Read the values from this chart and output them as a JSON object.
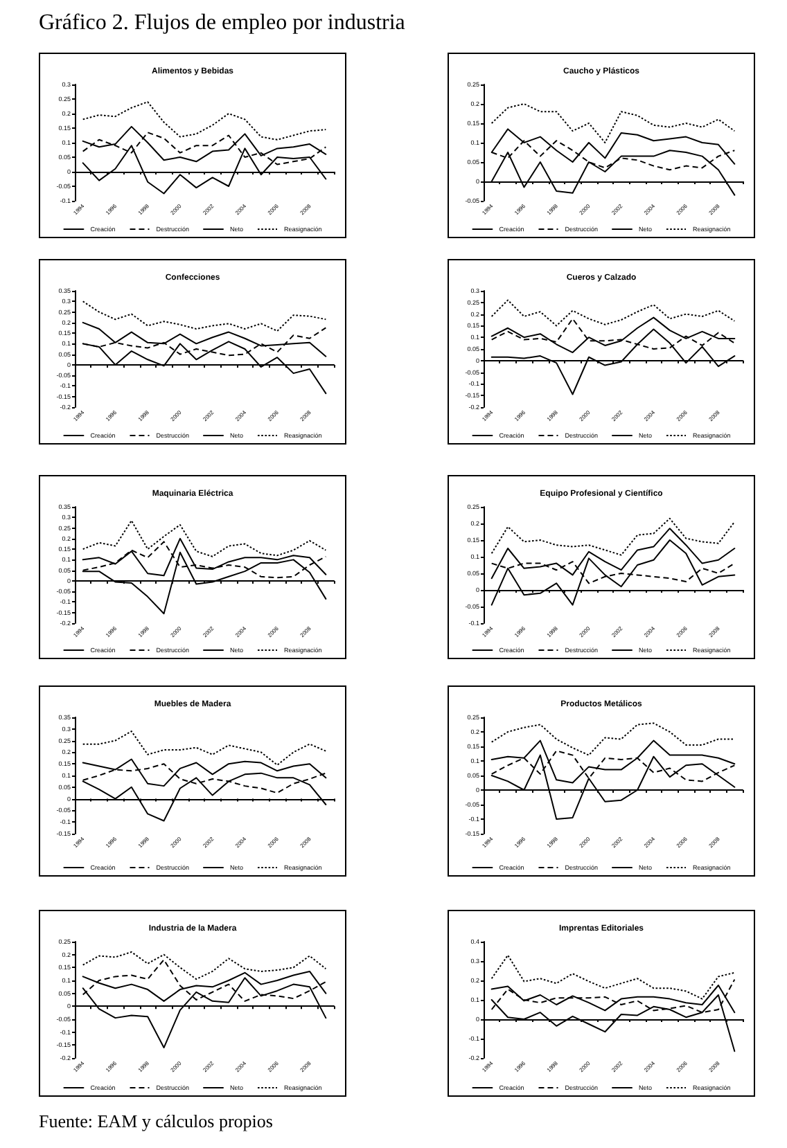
{
  "chart_data": [
    {
      "type": "other",
      "title": "Gráfico 2. Flujos de empleo por industria"
    },
    {
      "type": "line",
      "title": "Alimentos y Bebidas",
      "categories": [
        "1994",
        null,
        "1996",
        null,
        "1998",
        null,
        "2000",
        null,
        "2002",
        null,
        "2004",
        null,
        "2006",
        null,
        "2008",
        null
      ],
      "ylim": [
        -0.1,
        0.3
      ],
      "yticks": [
        -0.1,
        -0.05,
        0,
        0.05,
        0.1,
        0.15,
        0.2,
        0.25,
        0.3
      ],
      "legend": "bottom",
      "marker": "none",
      "series": [
        {
          "name": "Creación",
          "color": "#000000",
          "line_style": "solid",
          "values": [
            0.105,
            0.085,
            0.095,
            0.155,
            0.1,
            0.04,
            0.05,
            0.035,
            0.07,
            0.075,
            0.13,
            0.055,
            0.08,
            0.085,
            0.095,
            0.06
          ]
        },
        {
          "name": "Destrucción",
          "color": "#000000",
          "line_style": "dashed",
          "values": [
            0.07,
            0.11,
            0.09,
            0.065,
            0.135,
            0.115,
            0.065,
            0.09,
            0.09,
            0.125,
            0.05,
            0.065,
            0.025,
            0.035,
            0.045,
            0.085
          ]
        },
        {
          "name": "Neto",
          "color": "#000000",
          "line_style": "solid",
          "values": [
            0.03,
            -0.03,
            0.01,
            0.09,
            -0.035,
            -0.075,
            -0.01,
            -0.055,
            -0.02,
            -0.05,
            0.08,
            -0.01,
            0.05,
            0.045,
            0.05,
            -0.025
          ]
        },
        {
          "name": "Reasignación",
          "color": "#000000",
          "line_style": "dotted",
          "values": [
            0.18,
            0.195,
            0.19,
            0.22,
            0.24,
            0.17,
            0.12,
            0.13,
            0.16,
            0.2,
            0.18,
            0.12,
            0.11,
            0.125,
            0.14,
            0.145
          ]
        }
      ]
    },
    {
      "type": "line",
      "title": "Caucho y Plásticos",
      "categories": [
        "1994",
        null,
        "1996",
        null,
        "1998",
        null,
        "2000",
        null,
        "2002",
        null,
        "2004",
        null,
        "2006",
        null,
        "2008",
        null
      ],
      "ylim": [
        -0.05,
        0.25
      ],
      "yticks": [
        -0.05,
        0,
        0.05,
        0.1,
        0.15,
        0.2,
        0.25
      ],
      "legend": "bottom",
      "marker": "none",
      "series": [
        {
          "name": "Creación",
          "color": "#000000",
          "line_style": "solid",
          "values": [
            0.075,
            0.135,
            0.1,
            0.115,
            0.08,
            0.05,
            0.1,
            0.06,
            0.125,
            0.12,
            0.105,
            0.11,
            0.115,
            0.1,
            0.095,
            0.045
          ]
        },
        {
          "name": "Destrucción",
          "color": "#000000",
          "line_style": "dashed",
          "values": [
            0.075,
            0.06,
            0.105,
            0.065,
            0.105,
            0.08,
            0.05,
            0.035,
            0.06,
            0.055,
            0.04,
            0.03,
            0.04,
            0.035,
            0.065,
            0.08
          ]
        },
        {
          "name": "Neto",
          "color": "#000000",
          "line_style": "solid",
          "values": [
            0,
            0.075,
            -0.015,
            0.05,
            -0.025,
            -0.03,
            0.05,
            0.025,
            0.065,
            0.065,
            0.065,
            0.08,
            0.075,
            0.065,
            0.03,
            -0.035
          ]
        },
        {
          "name": "Reasignación",
          "color": "#000000",
          "line_style": "dotted",
          "values": [
            0.15,
            0.19,
            0.2,
            0.18,
            0.18,
            0.13,
            0.15,
            0.1,
            0.18,
            0.17,
            0.145,
            0.14,
            0.15,
            0.14,
            0.16,
            0.13
          ]
        }
      ]
    },
    {
      "type": "line",
      "title": "Confecciones",
      "categories": [
        "1994",
        null,
        "1996",
        null,
        "1998",
        null,
        "2000",
        null,
        "2002",
        null,
        "2004",
        null,
        "2006",
        null,
        "2008",
        null
      ],
      "ylim": [
        -0.2,
        0.35
      ],
      "yticks": [
        -0.2,
        -0.15,
        -0.1,
        -0.05,
        0,
        0.05,
        0.1,
        0.15,
        0.2,
        0.25,
        0.3,
        0.35
      ],
      "legend": "bottom",
      "marker": "none",
      "series": [
        {
          "name": "Creación",
          "color": "#000000",
          "line_style": "solid",
          "values": [
            0.2,
            0.17,
            0.105,
            0.155,
            0.105,
            0.1,
            0.145,
            0.1,
            0.13,
            0.155,
            0.125,
            0.09,
            0.095,
            0.1,
            0.105,
            0.04
          ]
        },
        {
          "name": "Destrucción",
          "color": "#000000",
          "line_style": "dashed",
          "values": [
            0.1,
            0.085,
            0.105,
            0.09,
            0.08,
            0.105,
            0.05,
            0.075,
            0.06,
            0.045,
            0.05,
            0.1,
            0.06,
            0.14,
            0.125,
            0.175
          ]
        },
        {
          "name": "Neto",
          "color": "#000000",
          "line_style": "solid",
          "values": [
            0.1,
            0.085,
            0,
            0.065,
            0.025,
            -0.005,
            0.1,
            0.025,
            0.07,
            0.11,
            0.075,
            -0.01,
            0.035,
            -0.04,
            -0.02,
            -0.135
          ]
        },
        {
          "name": "Reasignación",
          "color": "#000000",
          "line_style": "dotted",
          "values": [
            0.3,
            0.25,
            0.215,
            0.24,
            0.185,
            0.205,
            0.19,
            0.17,
            0.185,
            0.195,
            0.17,
            0.195,
            0.16,
            0.235,
            0.23,
            0.215
          ]
        }
      ]
    },
    {
      "type": "line",
      "title": "Cueros y Calzado",
      "categories": [
        "1994",
        null,
        "1996",
        null,
        "1998",
        null,
        "2000",
        null,
        "2002",
        null,
        "2004",
        null,
        "2006",
        null,
        "2008",
        null
      ],
      "ylim": [
        -0.2,
        0.3
      ],
      "yticks": [
        -0.2,
        -0.15,
        -0.1,
        -0.05,
        0,
        0.05,
        0.1,
        0.15,
        0.2,
        0.25,
        0.3
      ],
      "legend": "bottom",
      "marker": "none",
      "series": [
        {
          "name": "Creación",
          "color": "#000000",
          "line_style": "solid",
          "values": [
            0.105,
            0.14,
            0.1,
            0.115,
            0.07,
            0.035,
            0.1,
            0.065,
            0.085,
            0.14,
            0.185,
            0.13,
            0.095,
            0.125,
            0.095,
            0.095
          ]
        },
        {
          "name": "Destrucción",
          "color": "#000000",
          "line_style": "dashed",
          "values": [
            0.09,
            0.125,
            0.09,
            0.095,
            0.08,
            0.18,
            0.085,
            0.085,
            0.09,
            0.07,
            0.05,
            0.055,
            0.105,
            0.065,
            0.12,
            0.075
          ]
        },
        {
          "name": "Neto",
          "color": "#000000",
          "line_style": "solid",
          "values": [
            0.015,
            0.015,
            0.01,
            0.02,
            -0.01,
            -0.145,
            0.015,
            -0.02,
            -0.005,
            0.07,
            0.135,
            0.075,
            -0.01,
            0.06,
            -0.025,
            0.02
          ]
        },
        {
          "name": "Reasignación",
          "color": "#000000",
          "line_style": "dotted",
          "values": [
            0.19,
            0.26,
            0.19,
            0.21,
            0.15,
            0.215,
            0.18,
            0.155,
            0.175,
            0.21,
            0.24,
            0.18,
            0.2,
            0.19,
            0.215,
            0.17
          ]
        }
      ]
    },
    {
      "type": "line",
      "title": "Maquinaria Eléctrica",
      "categories": [
        "1994",
        null,
        "1996",
        null,
        "1998",
        null,
        "2000",
        null,
        "2002",
        null,
        "2004",
        null,
        "2006",
        null,
        "2008",
        null
      ],
      "ylim": [
        -0.2,
        0.35
      ],
      "yticks": [
        -0.2,
        -0.15,
        -0.1,
        -0.05,
        0,
        0.05,
        0.1,
        0.15,
        0.2,
        0.25,
        0.3,
        0.35
      ],
      "legend": "bottom",
      "marker": "none",
      "series": [
        {
          "name": "Creación",
          "color": "#000000",
          "line_style": "solid",
          "values": [
            0.1,
            0.11,
            0.08,
            0.14,
            0.035,
            0.025,
            0.2,
            0.06,
            0.055,
            0.09,
            0.11,
            0.11,
            0.1,
            0.12,
            0.11,
            0.03
          ]
        },
        {
          "name": "Destrucción",
          "color": "#000000",
          "line_style": "dashed",
          "values": [
            0.05,
            0.065,
            0.085,
            0.145,
            0.11,
            0.185,
            0.065,
            0.075,
            0.06,
            0.075,
            0.065,
            0.02,
            0.015,
            0.02,
            0.075,
            0.115
          ]
        },
        {
          "name": "Neto",
          "color": "#000000",
          "line_style": "solid",
          "values": [
            0.045,
            0.045,
            -0.005,
            -0.01,
            -0.075,
            -0.155,
            0.135,
            -0.015,
            -0.005,
            0.02,
            0.045,
            0.085,
            0.085,
            0.1,
            0.04,
            -0.085
          ]
        },
        {
          "name": "Reasignación",
          "color": "#000000",
          "line_style": "dotted",
          "values": [
            0.15,
            0.18,
            0.165,
            0.285,
            0.15,
            0.21,
            0.265,
            0.14,
            0.115,
            0.165,
            0.175,
            0.13,
            0.12,
            0.145,
            0.19,
            0.145
          ]
        }
      ]
    },
    {
      "type": "line",
      "title": "Equipo Profesional y Científico",
      "categories": [
        "1994",
        null,
        "1996",
        null,
        "1998",
        null,
        "2000",
        null,
        "2002",
        null,
        "2004",
        null,
        "2006",
        null,
        "2008",
        null
      ],
      "ylim": [
        -0.1,
        0.25
      ],
      "yticks": [
        -0.1,
        -0.05,
        0,
        0.05,
        0.1,
        0.15,
        0.2,
        0.25
      ],
      "legend": "bottom",
      "marker": "none",
      "series": [
        {
          "name": "Creación",
          "color": "#000000",
          "line_style": "solid",
          "values": [
            0.035,
            0.125,
            0.065,
            0.07,
            0.08,
            0.045,
            0.115,
            0.085,
            0.06,
            0.12,
            0.13,
            0.185,
            0.135,
            0.08,
            0.09,
            0.125
          ]
        },
        {
          "name": "Destrucción",
          "color": "#000000",
          "line_style": "dashed",
          "values": [
            0.08,
            0.065,
            0.08,
            0.08,
            0.06,
            0.085,
            0.02,
            0.04,
            0.05,
            0.045,
            0.04,
            0.035,
            0.025,
            0.065,
            0.05,
            0.08
          ]
        },
        {
          "name": "Neto",
          "color": "#000000",
          "line_style": "solid",
          "values": [
            -0.045,
            0.065,
            -0.015,
            -0.01,
            0.02,
            -0.045,
            0.095,
            0.045,
            0.01,
            0.075,
            0.09,
            0.15,
            0.11,
            0.015,
            0.04,
            0.045
          ]
        },
        {
          "name": "Reasignación",
          "color": "#000000",
          "line_style": "dotted",
          "values": [
            0.11,
            0.19,
            0.145,
            0.15,
            0.135,
            0.13,
            0.135,
            0.12,
            0.105,
            0.165,
            0.17,
            0.215,
            0.155,
            0.145,
            0.14,
            0.205
          ]
        }
      ]
    },
    {
      "type": "line",
      "title": "Muebles de Madera",
      "categories": [
        "1994",
        null,
        "1996",
        null,
        "1998",
        null,
        "2000",
        null,
        "2002",
        null,
        "2004",
        null,
        "2006",
        null,
        "2008",
        null
      ],
      "ylim": [
        -0.15,
        0.35
      ],
      "yticks": [
        -0.15,
        -0.1,
        -0.05,
        0,
        0.05,
        0.1,
        0.15,
        0.2,
        0.25,
        0.3,
        0.35
      ],
      "legend": "bottom",
      "marker": "none",
      "series": [
        {
          "name": "Creación",
          "color": "#000000",
          "line_style": "solid",
          "values": [
            0.155,
            0.14,
            0.125,
            0.17,
            0.065,
            0.055,
            0.13,
            0.155,
            0.105,
            0.15,
            0.16,
            0.155,
            0.12,
            0.14,
            0.15,
            0.09
          ]
        },
        {
          "name": "Destrucción",
          "color": "#000000",
          "line_style": "dashed",
          "values": [
            0.08,
            0.1,
            0.125,
            0.12,
            0.13,
            0.15,
            0.085,
            0.065,
            0.085,
            0.075,
            0.055,
            0.045,
            0.025,
            0.065,
            0.085,
            0.11
          ]
        },
        {
          "name": "Neto",
          "color": "#000000",
          "line_style": "solid",
          "values": [
            0.075,
            0.04,
            0,
            0.05,
            -0.065,
            -0.095,
            0.045,
            0.09,
            0.015,
            0.075,
            0.105,
            0.11,
            0.09,
            0.09,
            0.06,
            -0.025
          ]
        },
        {
          "name": "Reasignación",
          "color": "#000000",
          "line_style": "dotted",
          "values": [
            0.235,
            0.235,
            0.25,
            0.29,
            0.19,
            0.21,
            0.21,
            0.22,
            0.19,
            0.23,
            0.215,
            0.2,
            0.145,
            0.2,
            0.235,
            0.205
          ]
        }
      ]
    },
    {
      "type": "line",
      "title": "Productos Metálicos",
      "categories": [
        "1994",
        null,
        "1996",
        null,
        "1998",
        null,
        "2000",
        null,
        "2002",
        null,
        "2004",
        null,
        "2006",
        null,
        "2008",
        null
      ],
      "ylim": [
        -0.15,
        0.25
      ],
      "yticks": [
        -0.15,
        -0.1,
        -0.05,
        0,
        0.05,
        0.1,
        0.15,
        0.2,
        0.25
      ],
      "legend": "bottom",
      "marker": "none",
      "series": [
        {
          "name": "Creación",
          "color": "#000000",
          "line_style": "solid",
          "values": [
            0.105,
            0.115,
            0.11,
            0.17,
            0.035,
            0.025,
            0.08,
            0.07,
            0.07,
            0.11,
            0.17,
            0.12,
            0.12,
            0.12,
            0.11,
            0.09
          ]
        },
        {
          "name": "Destrucción",
          "color": "#000000",
          "line_style": "dashed",
          "values": [
            0.055,
            0.085,
            0.11,
            0.055,
            0.135,
            0.12,
            0.04,
            0.11,
            0.105,
            0.11,
            0.06,
            0.075,
            0.035,
            0.03,
            0.06,
            0.085
          ]
        },
        {
          "name": "Neto",
          "color": "#000000",
          "line_style": "solid",
          "values": [
            0.05,
            0.03,
            0,
            0.12,
            -0.1,
            -0.095,
            0.04,
            -0.04,
            -0.035,
            0,
            0.115,
            0.045,
            0.085,
            0.09,
            0.05,
            0.01
          ]
        },
        {
          "name": "Reasignación",
          "color": "#000000",
          "line_style": "dotted",
          "values": [
            0.165,
            0.2,
            0.215,
            0.225,
            0.175,
            0.145,
            0.12,
            0.18,
            0.175,
            0.225,
            0.23,
            0.2,
            0.155,
            0.155,
            0.175,
            0.175
          ]
        }
      ]
    },
    {
      "type": "line",
      "title": "Industria de la Madera",
      "categories": [
        "1994",
        null,
        "1996",
        null,
        "1998",
        null,
        "2000",
        null,
        "2002",
        null,
        "2004",
        null,
        "2006",
        null,
        "2008",
        null
      ],
      "ylim": [
        -0.2,
        0.25
      ],
      "yticks": [
        -0.2,
        -0.15,
        -0.1,
        -0.05,
        0,
        0.05,
        0.1,
        0.15,
        0.2,
        0.25
      ],
      "legend": "bottom",
      "marker": "none",
      "series": [
        {
          "name": "Creación",
          "color": "#000000",
          "line_style": "solid",
          "values": [
            0.115,
            0.09,
            0.07,
            0.085,
            0.065,
            0.02,
            0.065,
            0.08,
            0.075,
            0.1,
            0.13,
            0.085,
            0.1,
            0.12,
            0.135,
            0.05
          ]
        },
        {
          "name": "Destrucción",
          "color": "#000000",
          "line_style": "dashed",
          "values": [
            0.045,
            0.1,
            0.115,
            0.12,
            0.105,
            0.18,
            0.08,
            0.025,
            0.055,
            0.085,
            0.02,
            0.045,
            0.04,
            0.03,
            0.06,
            0.095
          ]
        },
        {
          "name": "Neto",
          "color": "#000000",
          "line_style": "solid",
          "values": [
            0.07,
            -0.01,
            -0.045,
            -0.035,
            -0.04,
            -0.16,
            -0.015,
            0.055,
            0.02,
            0.015,
            0.11,
            0.04,
            0.06,
            0.085,
            0.075,
            -0.045
          ]
        },
        {
          "name": "Reasignación",
          "color": "#000000",
          "line_style": "dotted",
          "values": [
            0.16,
            0.195,
            0.19,
            0.21,
            0.165,
            0.2,
            0.15,
            0.105,
            0.135,
            0.185,
            0.145,
            0.135,
            0.14,
            0.15,
            0.195,
            0.145
          ]
        }
      ]
    },
    {
      "type": "line",
      "title": "Imprentas Editoriales",
      "categories": [
        "1994",
        null,
        "1996",
        null,
        "1998",
        null,
        "2000",
        null,
        "2002",
        null,
        "2004",
        null,
        "2006",
        null,
        "2008",
        null
      ],
      "ylim": [
        -0.2,
        0.4
      ],
      "yticks": [
        -0.2,
        -0.1,
        0,
        0.1,
        0.2,
        0.3,
        0.4
      ],
      "legend": "bottom",
      "marker": "none",
      "series": [
        {
          "name": "Creación",
          "color": "#000000",
          "line_style": "solid",
          "values": [
            0.155,
            0.17,
            0.095,
            0.125,
            0.075,
            0.12,
            0.085,
            0.045,
            0.105,
            0.115,
            0.115,
            0.105,
            0.085,
            0.075,
            0.175,
            0.035
          ]
        },
        {
          "name": "Destrucción",
          "color": "#000000",
          "line_style": "dashed",
          "values": [
            0.05,
            0.155,
            0.1,
            0.085,
            0.11,
            0.11,
            0.11,
            0.115,
            0.075,
            0.095,
            0.045,
            0.055,
            0.07,
            0.035,
            0.05,
            0.205
          ]
        },
        {
          "name": "Neto",
          "color": "#000000",
          "line_style": "solid",
          "values": [
            0.1,
            0.01,
            0,
            0.035,
            -0.035,
            0.015,
            -0.025,
            -0.065,
            0.025,
            0.02,
            0.065,
            0.05,
            0.01,
            0.035,
            0.125,
            -0.165
          ]
        },
        {
          "name": "Reasignación",
          "color": "#000000",
          "line_style": "dotted",
          "values": [
            0.21,
            0.33,
            0.195,
            0.21,
            0.185,
            0.235,
            0.195,
            0.16,
            0.185,
            0.21,
            0.16,
            0.16,
            0.145,
            0.105,
            0.22,
            0.24
          ]
        }
      ]
    },
    {
      "type": "other",
      "annotations": [
        "Fuente: EAM y cálculos propios"
      ]
    }
  ]
}
